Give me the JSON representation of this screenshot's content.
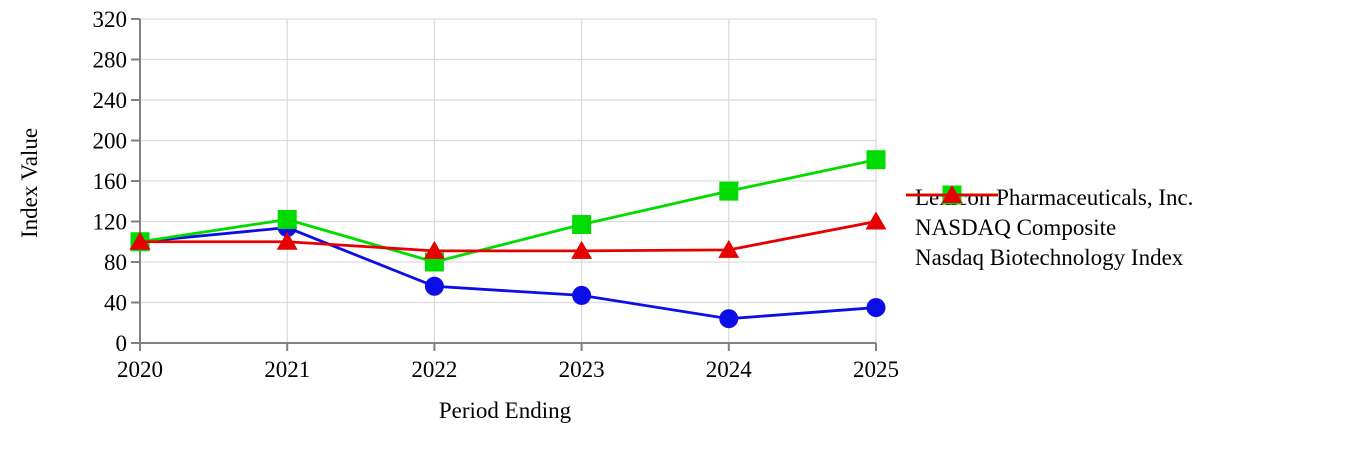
{
  "chart_data": {
    "type": "line",
    "title": "",
    "xlabel": "Period Ending",
    "ylabel": "Index Value",
    "categories": [
      "2020",
      "2021",
      "2022",
      "2023",
      "2024",
      "2025"
    ],
    "series": [
      {
        "name": "Lexicon Pharmaceuticals, Inc.",
        "marker": "circle",
        "color": "#0D0DE6",
        "values": [
          100,
          114,
          56,
          47,
          24,
          35
        ]
      },
      {
        "name": "NASDAQ Composite",
        "marker": "square",
        "color": "#00DC00",
        "values": [
          100,
          122,
          80,
          117,
          150,
          181
        ]
      },
      {
        "name": "Nasdaq Biotechnology Index",
        "marker": "triangle",
        "color": "#E60000",
        "values": [
          100,
          100,
          91,
          91,
          92,
          120
        ]
      }
    ],
    "ylim": [
      0,
      320
    ],
    "yticks": [
      0,
      40,
      80,
      120,
      160,
      200,
      240,
      280,
      320
    ],
    "grid": true,
    "legend_position": "right",
    "axis_color": "#808080",
    "grid_color": "#DCDCDC",
    "tick_label_color": "#000000"
  }
}
